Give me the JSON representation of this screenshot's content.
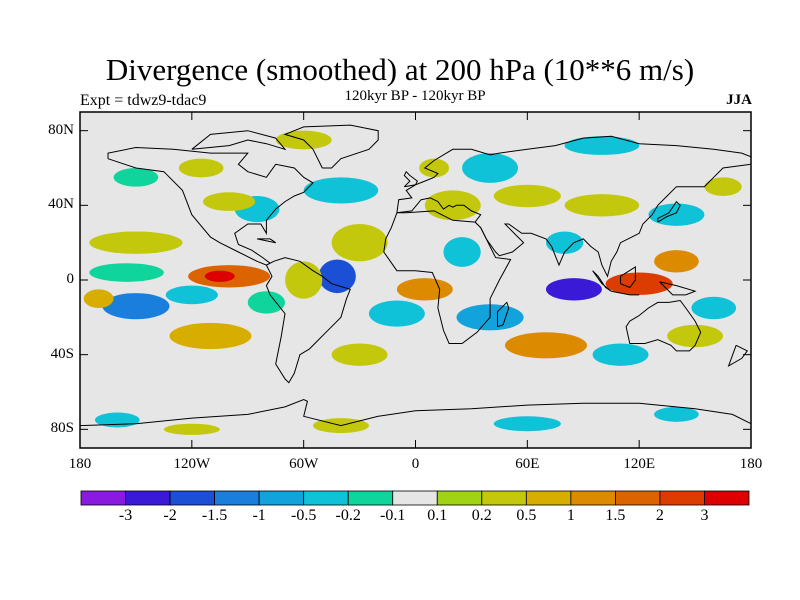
{
  "title": "Divergence (smoothed) at 200 hPa (10**6 m/s)",
  "subtitle": "120kyr BP - 120kyr BP",
  "experiment": "Expt = tdwz9-tdac9",
  "season": "JJA",
  "map": {
    "projection": "cylindrical equidistant",
    "lon_range": [
      -180,
      180
    ],
    "lat_range": [
      -90,
      90
    ],
    "background_fill_color": "#e6e6e6",
    "coastline_color": "#000000",
    "y_ticks": [
      {
        "lat": 80,
        "label": "80N"
      },
      {
        "lat": 40,
        "label": "40N"
      },
      {
        "lat": 0,
        "label": "0"
      },
      {
        "lat": -40,
        "label": "40S"
      },
      {
        "lat": -80,
        "label": "80S"
      }
    ],
    "x_ticks": [
      {
        "lon": -180,
        "label": "180"
      },
      {
        "lon": -120,
        "label": "120W"
      },
      {
        "lon": -60,
        "label": "60W"
      },
      {
        "lon": 0,
        "label": "0"
      },
      {
        "lon": 60,
        "label": "60E"
      },
      {
        "lon": 120,
        "label": "120E"
      },
      {
        "lon": 180,
        "label": "180"
      }
    ]
  },
  "colorbar": {
    "colors": [
      "#8a1ae0",
      "#3a1ad6",
      "#1a4fd6",
      "#1a7fdc",
      "#12a2dc",
      "#0fc2d8",
      "#0fd59c",
      "#e6e6e6",
      "#a0d216",
      "#c4c80c",
      "#d7ae00",
      "#dc8a00",
      "#dc6400",
      "#dc3c00",
      "#dc0000"
    ],
    "labels": [
      "-3",
      "-2",
      "-1.5",
      "-1",
      "-0.5",
      "-0.2",
      "-0.1",
      "0.1",
      "0.2",
      "0.5",
      "1",
      "1.5",
      "2",
      "3"
    ]
  },
  "features": [
    {
      "lon": -100,
      "lat": 2,
      "rx": 22,
      "ry": 6,
      "level": 12
    },
    {
      "lon": -105,
      "lat": 2,
      "rx": 8,
      "ry": 3,
      "level": 14
    },
    {
      "lon": -150,
      "lat": 20,
      "rx": 25,
      "ry": 6,
      "level": 9
    },
    {
      "lon": -155,
      "lat": 4,
      "rx": 20,
      "ry": 5,
      "level": 6
    },
    {
      "lon": -150,
      "lat": -14,
      "rx": 18,
      "ry": 7,
      "level": 3
    },
    {
      "lon": -170,
      "lat": -10,
      "rx": 8,
      "ry": 5,
      "level": 10
    },
    {
      "lon": -120,
      "lat": -8,
      "rx": 14,
      "ry": 5,
      "level": 5
    },
    {
      "lon": -110,
      "lat": -30,
      "rx": 22,
      "ry": 7,
      "level": 10
    },
    {
      "lon": -80,
      "lat": -12,
      "rx": 10,
      "ry": 6,
      "level": 6
    },
    {
      "lon": -42,
      "lat": 2,
      "rx": 10,
      "ry": 9,
      "level": 2
    },
    {
      "lon": -60,
      "lat": 0,
      "rx": 10,
      "ry": 10,
      "level": 9
    },
    {
      "lon": -30,
      "lat": 20,
      "rx": 15,
      "ry": 10,
      "level": 9
    },
    {
      "lon": -40,
      "lat": 48,
      "rx": 20,
      "ry": 7,
      "level": 5
    },
    {
      "lon": -85,
      "lat": 38,
      "rx": 12,
      "ry": 7,
      "level": 5
    },
    {
      "lon": -100,
      "lat": 42,
      "rx": 14,
      "ry": 5,
      "level": 9
    },
    {
      "lon": -150,
      "lat": 55,
      "rx": 12,
      "ry": 5,
      "level": 6
    },
    {
      "lon": -115,
      "lat": 60,
      "rx": 12,
      "ry": 5,
      "level": 9
    },
    {
      "lon": -30,
      "lat": -40,
      "rx": 15,
      "ry": 6,
      "level": 9
    },
    {
      "lon": -10,
      "lat": -18,
      "rx": 15,
      "ry": 7,
      "level": 5
    },
    {
      "lon": 5,
      "lat": -5,
      "rx": 15,
      "ry": 6,
      "level": 11
    },
    {
      "lon": 20,
      "lat": 40,
      "rx": 15,
      "ry": 8,
      "level": 9
    },
    {
      "lon": 25,
      "lat": 15,
      "rx": 10,
      "ry": 8,
      "level": 5
    },
    {
      "lon": 40,
      "lat": 60,
      "rx": 15,
      "ry": 8,
      "level": 5
    },
    {
      "lon": 10,
      "lat": 60,
      "rx": 8,
      "ry": 5,
      "level": 9
    },
    {
      "lon": 60,
      "lat": 45,
      "rx": 18,
      "ry": 6,
      "level": 9
    },
    {
      "lon": 100,
      "lat": 40,
      "rx": 20,
      "ry": 6,
      "level": 9
    },
    {
      "lon": 140,
      "lat": 35,
      "rx": 15,
      "ry": 6,
      "level": 5
    },
    {
      "lon": 165,
      "lat": 50,
      "rx": 10,
      "ry": 5,
      "level": 9
    },
    {
      "lon": 40,
      "lat": -20,
      "rx": 18,
      "ry": 7,
      "level": 4
    },
    {
      "lon": 70,
      "lat": -35,
      "rx": 22,
      "ry": 7,
      "level": 11
    },
    {
      "lon": 110,
      "lat": -40,
      "rx": 15,
      "ry": 6,
      "level": 5
    },
    {
      "lon": 150,
      "lat": -30,
      "rx": 15,
      "ry": 6,
      "level": 9
    },
    {
      "lon": 85,
      "lat": -5,
      "rx": 15,
      "ry": 6,
      "level": 1
    },
    {
      "lon": 80,
      "lat": 20,
      "rx": 10,
      "ry": 6,
      "level": 5
    },
    {
      "lon": 120,
      "lat": -2,
      "rx": 18,
      "ry": 6,
      "level": 13
    },
    {
      "lon": 140,
      "lat": 10,
      "rx": 12,
      "ry": 6,
      "level": 11
    },
    {
      "lon": 160,
      "lat": -15,
      "rx": 12,
      "ry": 6,
      "level": 5
    },
    {
      "lon": -160,
      "lat": -75,
      "rx": 12,
      "ry": 4,
      "level": 5
    },
    {
      "lon": -40,
      "lat": -78,
      "rx": 15,
      "ry": 4,
      "level": 9
    },
    {
      "lon": 60,
      "lat": -77,
      "rx": 18,
      "ry": 4,
      "level": 5
    },
    {
      "lon": 140,
      "lat": -72,
      "rx": 12,
      "ry": 4,
      "level": 5
    },
    {
      "lon": -120,
      "lat": -80,
      "rx": 15,
      "ry": 3,
      "level": 9
    },
    {
      "lon": 100,
      "lat": 72,
      "rx": 20,
      "ry": 5,
      "level": 5
    },
    {
      "lon": -60,
      "lat": 75,
      "rx": 15,
      "ry": 5,
      "level": 9
    }
  ],
  "coastlines": [
    [
      [
        -165,
        65
      ],
      [
        -150,
        60
      ],
      [
        -135,
        58
      ],
      [
        -125,
        48
      ],
      [
        -120,
        35
      ],
      [
        -110,
        23
      ],
      [
        -105,
        20
      ],
      [
        -95,
        15
      ],
      [
        -85,
        10
      ],
      [
        -80,
        8
      ],
      [
        -78,
        9
      ],
      [
        -82,
        12
      ],
      [
        -88,
        16
      ],
      [
        -95,
        19
      ],
      [
        -97,
        25
      ],
      [
        -90,
        30
      ],
      [
        -83,
        30
      ],
      [
        -80,
        25
      ],
      [
        -80,
        32
      ],
      [
        -75,
        38
      ],
      [
        -70,
        42
      ],
      [
        -65,
        45
      ],
      [
        -60,
        47
      ],
      [
        -55,
        52
      ],
      [
        -60,
        55
      ],
      [
        -65,
        60
      ],
      [
        -75,
        62
      ],
      [
        -80,
        55
      ],
      [
        -90,
        58
      ],
      [
        -95,
        62
      ],
      [
        -90,
        68
      ],
      [
        -110,
        68
      ],
      [
        -130,
        70
      ],
      [
        -150,
        71
      ],
      [
        -165,
        68
      ],
      [
        -165,
        65
      ]
    ],
    [
      [
        -80,
        8
      ],
      [
        -77,
        2
      ],
      [
        -80,
        -3
      ],
      [
        -78,
        -8
      ],
      [
        -70,
        -18
      ],
      [
        -72,
        -30
      ],
      [
        -75,
        -45
      ],
      [
        -70,
        -53
      ],
      [
        -68,
        -55
      ],
      [
        -65,
        -50
      ],
      [
        -62,
        -40
      ],
      [
        -57,
        -37
      ],
      [
        -53,
        -33
      ],
      [
        -48,
        -28
      ],
      [
        -40,
        -20
      ],
      [
        -37,
        -10
      ],
      [
        -35,
        -5
      ],
      [
        -45,
        -2
      ],
      [
        -50,
        2
      ],
      [
        -55,
        5
      ],
      [
        -62,
        10
      ],
      [
        -70,
        12
      ],
      [
        -76,
        10
      ],
      [
        -80,
        8
      ]
    ],
    [
      [
        -10,
        36
      ],
      [
        -5,
        36
      ],
      [
        10,
        37
      ],
      [
        20,
        32
      ],
      [
        32,
        31
      ],
      [
        35,
        28
      ],
      [
        43,
        12
      ],
      [
        51,
        11
      ],
      [
        45,
        0
      ],
      [
        40,
        -10
      ],
      [
        40,
        -20
      ],
      [
        33,
        -28
      ],
      [
        25,
        -34
      ],
      [
        18,
        -34
      ],
      [
        15,
        -27
      ],
      [
        12,
        -15
      ],
      [
        13,
        -5
      ],
      [
        9,
        4
      ],
      [
        0,
        5
      ],
      [
        -10,
        5
      ],
      [
        -17,
        15
      ],
      [
        -16,
        22
      ],
      [
        -13,
        28
      ],
      [
        -10,
        36
      ]
    ],
    [
      [
        -10,
        36
      ],
      [
        -9,
        43
      ],
      [
        -2,
        44
      ],
      [
        -5,
        48
      ],
      [
        0,
        51
      ],
      [
        5,
        53
      ],
      [
        10,
        55
      ],
      [
        12,
        57
      ],
      [
        5,
        60
      ],
      [
        10,
        64
      ],
      [
        20,
        70
      ],
      [
        30,
        70
      ],
      [
        40,
        67
      ],
      [
        45,
        68
      ],
      [
        60,
        70
      ],
      [
        75,
        72
      ],
      [
        90,
        76
      ],
      [
        105,
        77
      ],
      [
        120,
        73
      ],
      [
        140,
        72
      ],
      [
        160,
        70
      ],
      [
        175,
        68
      ],
      [
        180,
        66
      ]
    ],
    [
      [
        180,
        62
      ],
      [
        165,
        60
      ],
      [
        160,
        55
      ],
      [
        155,
        50
      ],
      [
        140,
        50
      ],
      [
        135,
        45
      ],
      [
        130,
        40
      ],
      [
        127,
        35
      ],
      [
        122,
        30
      ],
      [
        120,
        25
      ],
      [
        110,
        20
      ],
      [
        108,
        15
      ],
      [
        105,
        10
      ],
      [
        103,
        2
      ],
      [
        100,
        8
      ],
      [
        98,
        15
      ],
      [
        94,
        18
      ],
      [
        90,
        22
      ],
      [
        85,
        20
      ],
      [
        80,
        15
      ],
      [
        77,
        8
      ],
      [
        73,
        18
      ],
      [
        70,
        22
      ],
      [
        62,
        25
      ],
      [
        57,
        25
      ],
      [
        50,
        30
      ],
      [
        48,
        30
      ],
      [
        55,
        23
      ],
      [
        58,
        20
      ],
      [
        52,
        15
      ],
      [
        45,
        13
      ],
      [
        43,
        15
      ],
      [
        38,
        22
      ],
      [
        35,
        28
      ],
      [
        32,
        31
      ],
      [
        35,
        35
      ],
      [
        30,
        37
      ],
      [
        26,
        40
      ],
      [
        22,
        40
      ],
      [
        20,
        39
      ],
      [
        18,
        40
      ],
      [
        15,
        38
      ],
      [
        12,
        42
      ],
      [
        8,
        44
      ],
      [
        3,
        43
      ],
      [
        -2,
        37
      ],
      [
        -10,
        36
      ]
    ],
    [
      [
        115,
        -22
      ],
      [
        113,
        -25
      ],
      [
        115,
        -34
      ],
      [
        123,
        -34
      ],
      [
        130,
        -32
      ],
      [
        137,
        -35
      ],
      [
        140,
        -38
      ],
      [
        147,
        -38
      ],
      [
        150,
        -35
      ],
      [
        153,
        -28
      ],
      [
        150,
        -22
      ],
      [
        145,
        -15
      ],
      [
        142,
        -11
      ],
      [
        136,
        -12
      ],
      [
        130,
        -12
      ],
      [
        125,
        -15
      ],
      [
        120,
        -19
      ],
      [
        115,
        -22
      ]
    ],
    [
      [
        -180,
        -78
      ],
      [
        -150,
        -77
      ],
      [
        -120,
        -74
      ],
      [
        -90,
        -72
      ],
      [
        -70,
        -68
      ],
      [
        -60,
        -64
      ],
      [
        -58,
        -65
      ],
      [
        -60,
        -73
      ],
      [
        -40,
        -78
      ],
      [
        -20,
        -73
      ],
      [
        0,
        -70
      ],
      [
        30,
        -69
      ],
      [
        60,
        -67
      ],
      [
        90,
        -66
      ],
      [
        120,
        -66
      ],
      [
        150,
        -69
      ],
      [
        170,
        -72
      ],
      [
        180,
        -77
      ]
    ],
    [
      [
        -50,
        60
      ],
      [
        -45,
        60
      ],
      [
        -40,
        65
      ],
      [
        -25,
        70
      ],
      [
        -20,
        75
      ],
      [
        -20,
        80
      ],
      [
        -35,
        83
      ],
      [
        -60,
        82
      ],
      [
        -70,
        78
      ],
      [
        -60,
        75
      ],
      [
        -55,
        70
      ],
      [
        -50,
        60
      ]
    ],
    [
      [
        95,
        5
      ],
      [
        100,
        -2
      ],
      [
        105,
        -6
      ],
      [
        102,
        -4
      ],
      [
        98,
        2
      ],
      [
        95,
        5
      ]
    ],
    [
      [
        105,
        -6
      ],
      [
        115,
        -8
      ],
      [
        120,
        -8
      ],
      [
        115,
        -8
      ],
      [
        105,
        -6
      ]
    ],
    [
      [
        110,
        2
      ],
      [
        118,
        7
      ],
      [
        118,
        0
      ],
      [
        115,
        -4
      ],
      [
        110,
        -2
      ],
      [
        110,
        2
      ]
    ],
    [
      [
        131,
        -1
      ],
      [
        140,
        -3
      ],
      [
        150,
        -6
      ],
      [
        145,
        -8
      ],
      [
        138,
        -8
      ],
      [
        131,
        -1
      ]
    ],
    [
      [
        130,
        31
      ],
      [
        135,
        34
      ],
      [
        140,
        36
      ],
      [
        142,
        40
      ],
      [
        140,
        42
      ],
      [
        136,
        36
      ],
      [
        130,
        33
      ],
      [
        130,
        31
      ]
    ],
    [
      [
        44,
        -25
      ],
      [
        47,
        -24
      ],
      [
        50,
        -15
      ],
      [
        49,
        -12
      ],
      [
        44,
        -17
      ],
      [
        44,
        -25
      ]
    ],
    [
      [
        -6,
        50
      ],
      [
        0,
        51
      ],
      [
        1,
        53
      ],
      [
        -3,
        56
      ],
      [
        -5,
        58
      ],
      [
        -6,
        56
      ],
      [
        -3,
        53
      ],
      [
        -6,
        50
      ]
    ],
    [
      [
        172,
        -35
      ],
      [
        178,
        -38
      ],
      [
        175,
        -42
      ],
      [
        168,
        -46
      ],
      [
        172,
        -35
      ]
    ],
    [
      [
        -120,
        70
      ],
      [
        -100,
        72
      ],
      [
        -90,
        75
      ],
      [
        -80,
        73
      ],
      [
        -70,
        70
      ],
      [
        -75,
        76
      ],
      [
        -90,
        80
      ],
      [
        -110,
        78
      ],
      [
        -120,
        70
      ]
    ],
    [
      [
        -85,
        22
      ],
      [
        -75,
        20
      ],
      [
        -78,
        22
      ],
      [
        -85,
        22
      ]
    ]
  ]
}
